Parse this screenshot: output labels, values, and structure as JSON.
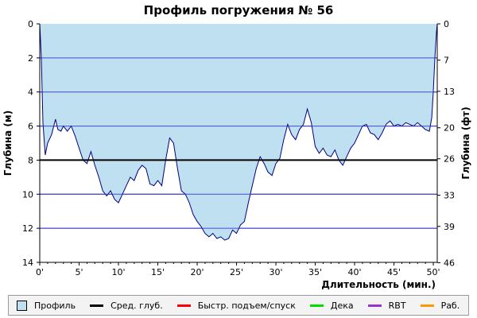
{
  "chart_data": {
    "type": "area",
    "title": "Профиль погружения № 56",
    "xlabel": "Длительность (мин.)",
    "ylabel_left": "Глубина (м)",
    "ylabel_right": "Глубина (фт)",
    "xlim": [
      0,
      50.5
    ],
    "ylim": [
      0,
      14
    ],
    "y_inverted": true,
    "x_ticks": [
      "0'",
      "5'",
      "10'",
      "15'",
      "20'",
      "25'",
      "30'",
      "35'",
      "40'",
      "45'",
      "50'"
    ],
    "x_tick_values": [
      0,
      5,
      10,
      15,
      20,
      25,
      30,
      35,
      40,
      45,
      50
    ],
    "y_ticks_left": [
      "0",
      "2",
      "4",
      "6",
      "8",
      "10",
      "12",
      "14"
    ],
    "y_tick_values_left": [
      0,
      2,
      4,
      6,
      8,
      10,
      12,
      14
    ],
    "y_ticks_right": [
      "0",
      "7",
      "13",
      "20",
      "26",
      "33",
      "39",
      "46"
    ],
    "y_tick_values_right": [
      0,
      2.13,
      3.96,
      6.1,
      7.92,
      10.06,
      11.89,
      14.02
    ],
    "average_depth": 8.0,
    "grid": true,
    "colors": {
      "profile_fill": "#bee0f0",
      "profile_line": "#000080",
      "grid_line": "#3333cc",
      "average_line": "#000000",
      "fast_ascent": "#ff0000",
      "deco": "#00dd00",
      "rbt": "#9933cc",
      "work": "#ff9900"
    },
    "series": [
      {
        "name": "Профиль",
        "points": [
          [
            0,
            0
          ],
          [
            0.2,
            2.0
          ],
          [
            0.4,
            5.8
          ],
          [
            0.7,
            7.7
          ],
          [
            1.0,
            7.0
          ],
          [
            1.5,
            6.5
          ],
          [
            2.0,
            5.6
          ],
          [
            2.3,
            6.2
          ],
          [
            2.7,
            6.3
          ],
          [
            3.0,
            6.0
          ],
          [
            3.5,
            6.3
          ],
          [
            4.0,
            6.0
          ],
          [
            4.5,
            6.6
          ],
          [
            5.0,
            7.3
          ],
          [
            5.5,
            8.0
          ],
          [
            6.0,
            8.2
          ],
          [
            6.5,
            7.5
          ],
          [
            7.0,
            8.3
          ],
          [
            7.5,
            9.0
          ],
          [
            8.0,
            9.8
          ],
          [
            8.5,
            10.1
          ],
          [
            9.0,
            9.8
          ],
          [
            9.5,
            10.3
          ],
          [
            10.0,
            10.5
          ],
          [
            10.5,
            10.0
          ],
          [
            11.0,
            9.5
          ],
          [
            11.5,
            9.0
          ],
          [
            12.0,
            9.2
          ],
          [
            12.5,
            8.6
          ],
          [
            13.0,
            8.3
          ],
          [
            13.5,
            8.5
          ],
          [
            14.0,
            9.4
          ],
          [
            14.5,
            9.5
          ],
          [
            15.0,
            9.2
          ],
          [
            15.5,
            9.5
          ],
          [
            16.0,
            8.0
          ],
          [
            16.5,
            6.7
          ],
          [
            17.0,
            7.0
          ],
          [
            17.5,
            8.5
          ],
          [
            18.0,
            9.8
          ],
          [
            18.5,
            10.0
          ],
          [
            19.0,
            10.5
          ],
          [
            19.5,
            11.2
          ],
          [
            20.0,
            11.6
          ],
          [
            20.5,
            11.9
          ],
          [
            21.0,
            12.3
          ],
          [
            21.5,
            12.5
          ],
          [
            22.0,
            12.3
          ],
          [
            22.5,
            12.6
          ],
          [
            23.0,
            12.5
          ],
          [
            23.5,
            12.7
          ],
          [
            24.0,
            12.6
          ],
          [
            24.5,
            12.1
          ],
          [
            25.0,
            12.3
          ],
          [
            25.5,
            11.8
          ],
          [
            26.0,
            11.6
          ],
          [
            26.5,
            10.5
          ],
          [
            27.0,
            9.5
          ],
          [
            27.5,
            8.5
          ],
          [
            28.0,
            7.8
          ],
          [
            28.5,
            8.2
          ],
          [
            29.0,
            8.7
          ],
          [
            29.5,
            8.9
          ],
          [
            30.0,
            8.2
          ],
          [
            30.5,
            7.9
          ],
          [
            31.0,
            6.8
          ],
          [
            31.5,
            5.9
          ],
          [
            32.0,
            6.5
          ],
          [
            32.5,
            6.8
          ],
          [
            33.0,
            6.2
          ],
          [
            33.5,
            5.9
          ],
          [
            34.0,
            5.0
          ],
          [
            34.5,
            5.8
          ],
          [
            35.0,
            7.2
          ],
          [
            35.5,
            7.6
          ],
          [
            36.0,
            7.3
          ],
          [
            36.5,
            7.7
          ],
          [
            37.0,
            7.8
          ],
          [
            37.5,
            7.4
          ],
          [
            38.0,
            8.0
          ],
          [
            38.5,
            8.3
          ],
          [
            39.0,
            7.8
          ],
          [
            39.5,
            7.3
          ],
          [
            40.0,
            7.0
          ],
          [
            40.5,
            6.5
          ],
          [
            41.0,
            6.0
          ],
          [
            41.5,
            5.9
          ],
          [
            42.0,
            6.4
          ],
          [
            42.5,
            6.5
          ],
          [
            43.0,
            6.8
          ],
          [
            43.5,
            6.4
          ],
          [
            44.0,
            5.9
          ],
          [
            44.5,
            5.7
          ],
          [
            45.0,
            6.0
          ],
          [
            45.5,
            5.9
          ],
          [
            46.0,
            6.0
          ],
          [
            46.5,
            5.8
          ],
          [
            47.0,
            5.9
          ],
          [
            47.5,
            6.0
          ],
          [
            48.0,
            5.8
          ],
          [
            48.5,
            6.0
          ],
          [
            49.0,
            6.2
          ],
          [
            49.5,
            6.3
          ],
          [
            49.8,
            5.5
          ],
          [
            50.0,
            4.0
          ],
          [
            50.2,
            2.0
          ],
          [
            50.4,
            0.5
          ],
          [
            50.5,
            0
          ]
        ]
      }
    ]
  },
  "legend": {
    "items": [
      {
        "label": "Профиль",
        "kind": "box",
        "color": "#bee0f0"
      },
      {
        "label": "Сред. глуб.",
        "kind": "line",
        "color": "#000000"
      },
      {
        "label": "Быстр. подъем/спуск",
        "kind": "line",
        "color": "#ff0000"
      },
      {
        "label": "Дека",
        "kind": "line",
        "color": "#00dd00"
      },
      {
        "label": "RBT",
        "kind": "line",
        "color": "#9933cc"
      },
      {
        "label": "Раб.",
        "kind": "line",
        "color": "#ff9900"
      }
    ]
  }
}
